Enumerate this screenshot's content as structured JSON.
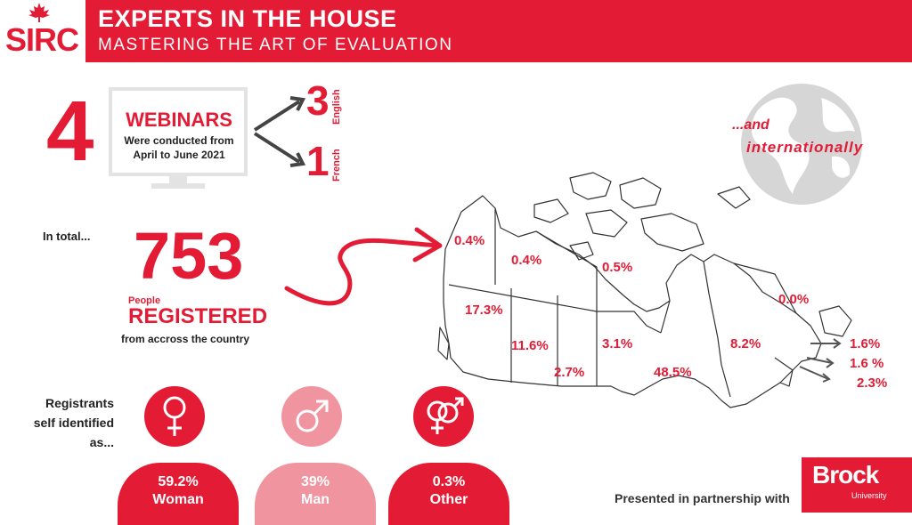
{
  "header": {
    "logo_text": "SIRC",
    "title": "EXPERTS IN THE HOUSE",
    "subtitle": "MASTERING THE ART OF EVALUATION"
  },
  "webinars": {
    "count": "4",
    "word": "WEBINARS",
    "desc_line1": "Were conducted from",
    "desc_line2": "April to June 2021",
    "english_count": "3",
    "english_label": "English",
    "french_count": "1",
    "french_label": "French"
  },
  "totals": {
    "lead": "In total...",
    "count": "753",
    "people": "People",
    "registered": "REGISTERED",
    "from": "from accross the country"
  },
  "international": {
    "line1": "...and",
    "line2": "internationally"
  },
  "map_values": {
    "yukon": "0.4%",
    "nwt": "0.4%",
    "nunavut": "0.5%",
    "newfoundland_labrador": "0.0%",
    "bc": "17.3%",
    "alberta": "11.6%",
    "saskatchewan": "2.7%",
    "manitoba": "3.1%",
    "ontario": "48.5%",
    "quebec": "8.2%",
    "atlantic_1": "1.6%",
    "atlantic_2": "1.6 %",
    "atlantic_3": "2.3%"
  },
  "gender": {
    "label_line1": "Registrants",
    "label_line2": "self identified",
    "label_line3": "as...",
    "woman_pct": "59.2%",
    "woman_label": "Woman",
    "man_pct": "39%",
    "man_label": "Man",
    "other_pct": "0.3%",
    "other_label": "Other"
  },
  "footer": {
    "presented": "Presented in partnership with",
    "brock": "Brock",
    "brock_sub": "University"
  },
  "colors": {
    "accent": "#e31b34",
    "light_accent": "#f0949f",
    "globe": "#d6d6d6"
  }
}
